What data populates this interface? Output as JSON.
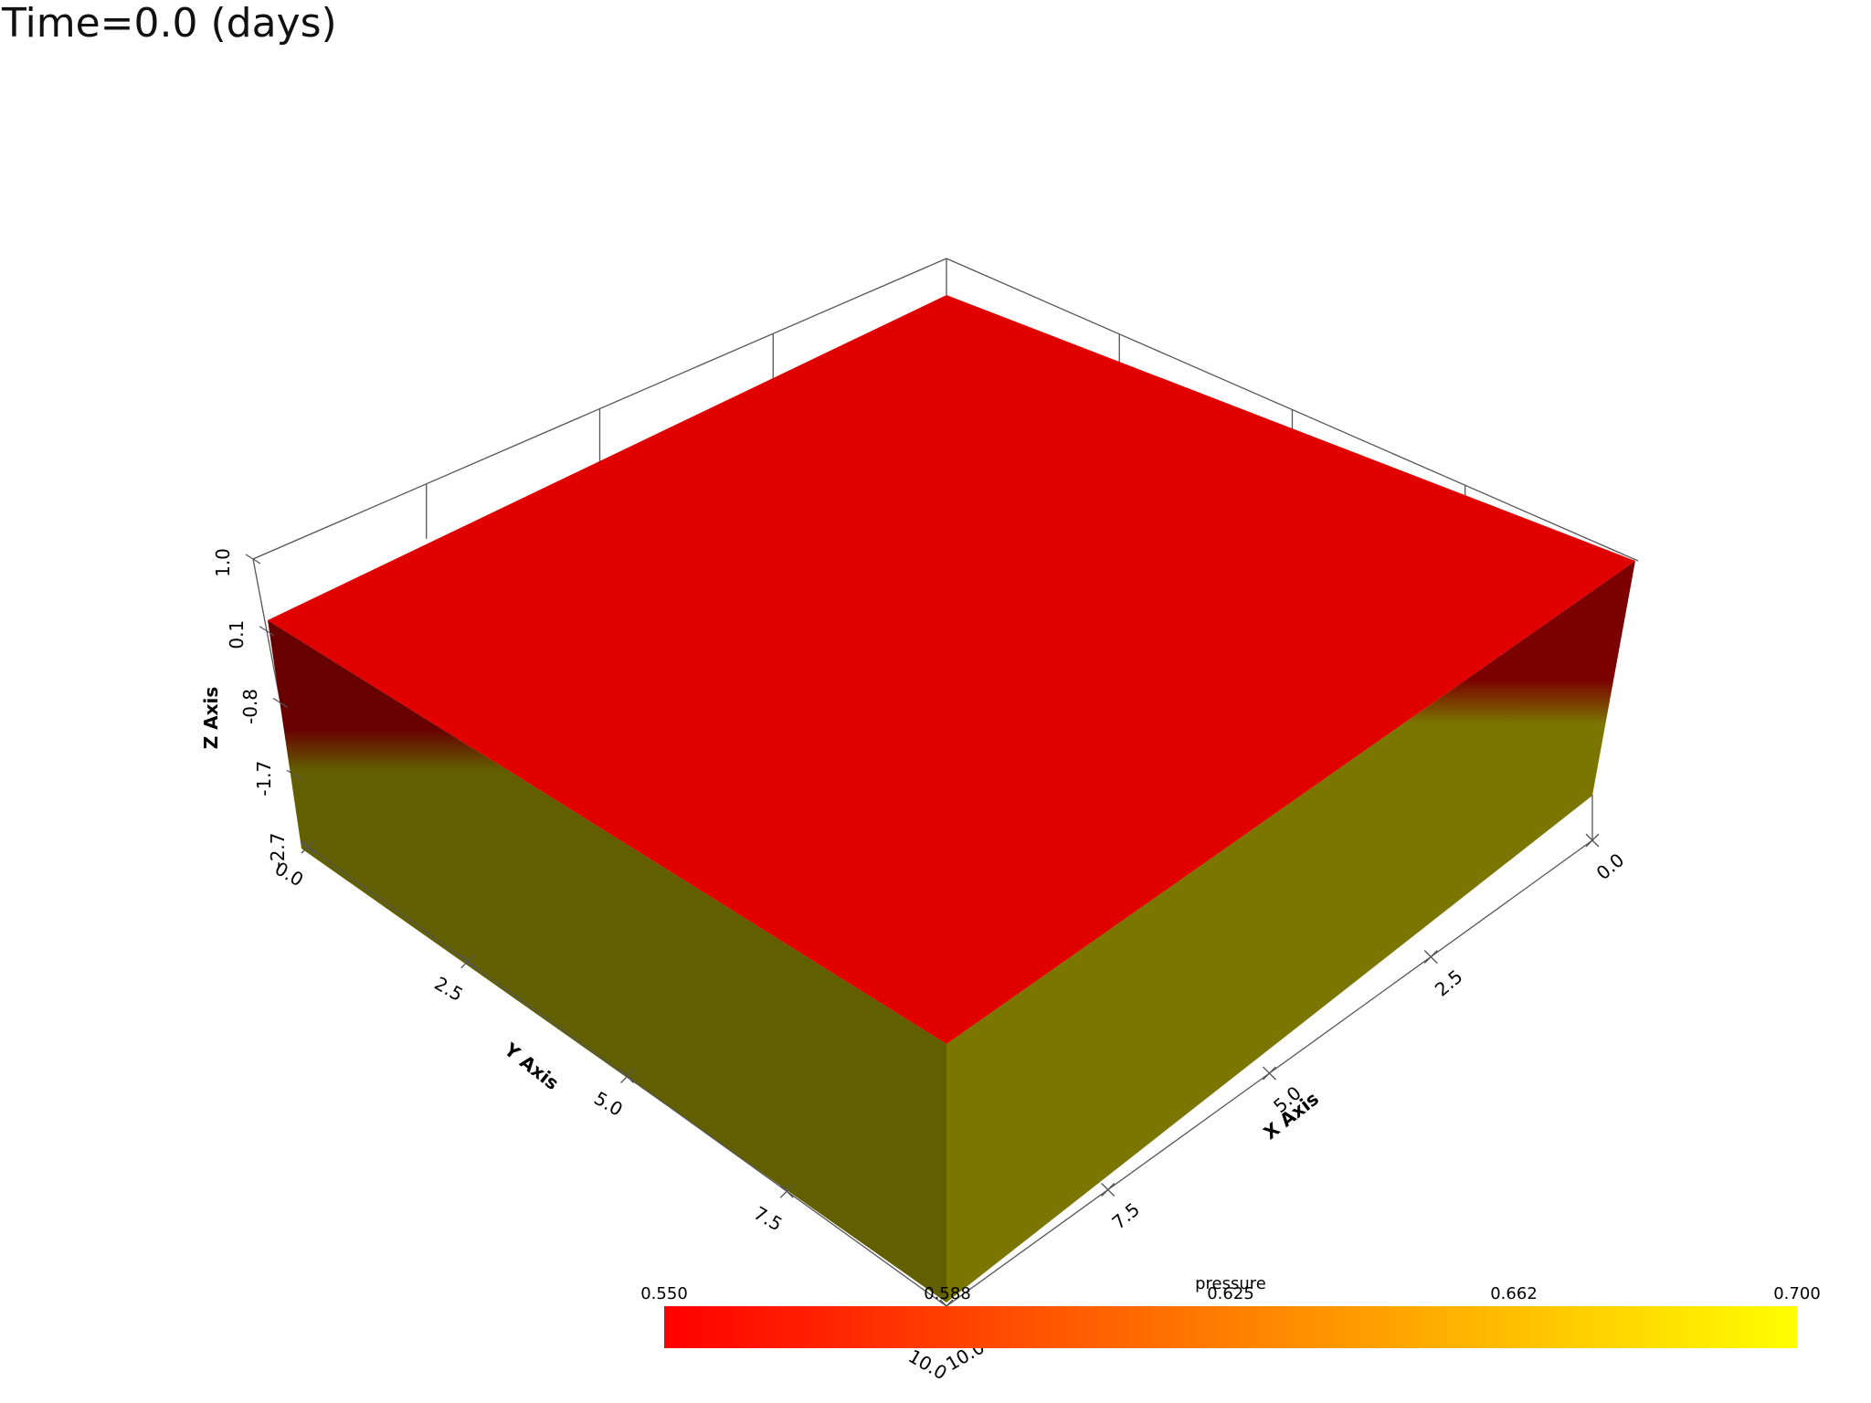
{
  "header": {
    "time_label": "Time=0.0 (days)"
  },
  "chart_data": {
    "type": "volume-3d",
    "scalar": "pressure",
    "time_days": 0.0,
    "x_axis": {
      "title": "X Axis",
      "ticks": [
        "0.0",
        "2.5",
        "5.0",
        "7.5",
        "10.0"
      ],
      "range": [
        0,
        10
      ]
    },
    "y_axis": {
      "title": "Y Axis",
      "ticks": [
        "0.0",
        "2.5",
        "5.0",
        "7.5",
        "10.0"
      ],
      "range": [
        0,
        10
      ]
    },
    "z_axis": {
      "title": "Z Axis",
      "ticks": [
        "1.0",
        "0.1",
        "-0.8",
        "-1.7",
        "-2.7"
      ],
      "range": [
        -2.7,
        1.0
      ]
    },
    "colorbar": {
      "title": "pressure",
      "ticks": [
        "0.550",
        "0.588",
        "0.625",
        "0.662",
        "0.700"
      ],
      "range": [
        0.55,
        0.7
      ],
      "colormap": "red-to-yellow",
      "color_low": "#ff0000",
      "color_mid": "#ff7f00",
      "color_high": "#ffff00"
    },
    "colors": {
      "top_face": "#e00000",
      "band_left": "#680000",
      "band_right": "#7c0000",
      "lower_left": "#625f00",
      "lower_right": "#7a7600"
    }
  }
}
